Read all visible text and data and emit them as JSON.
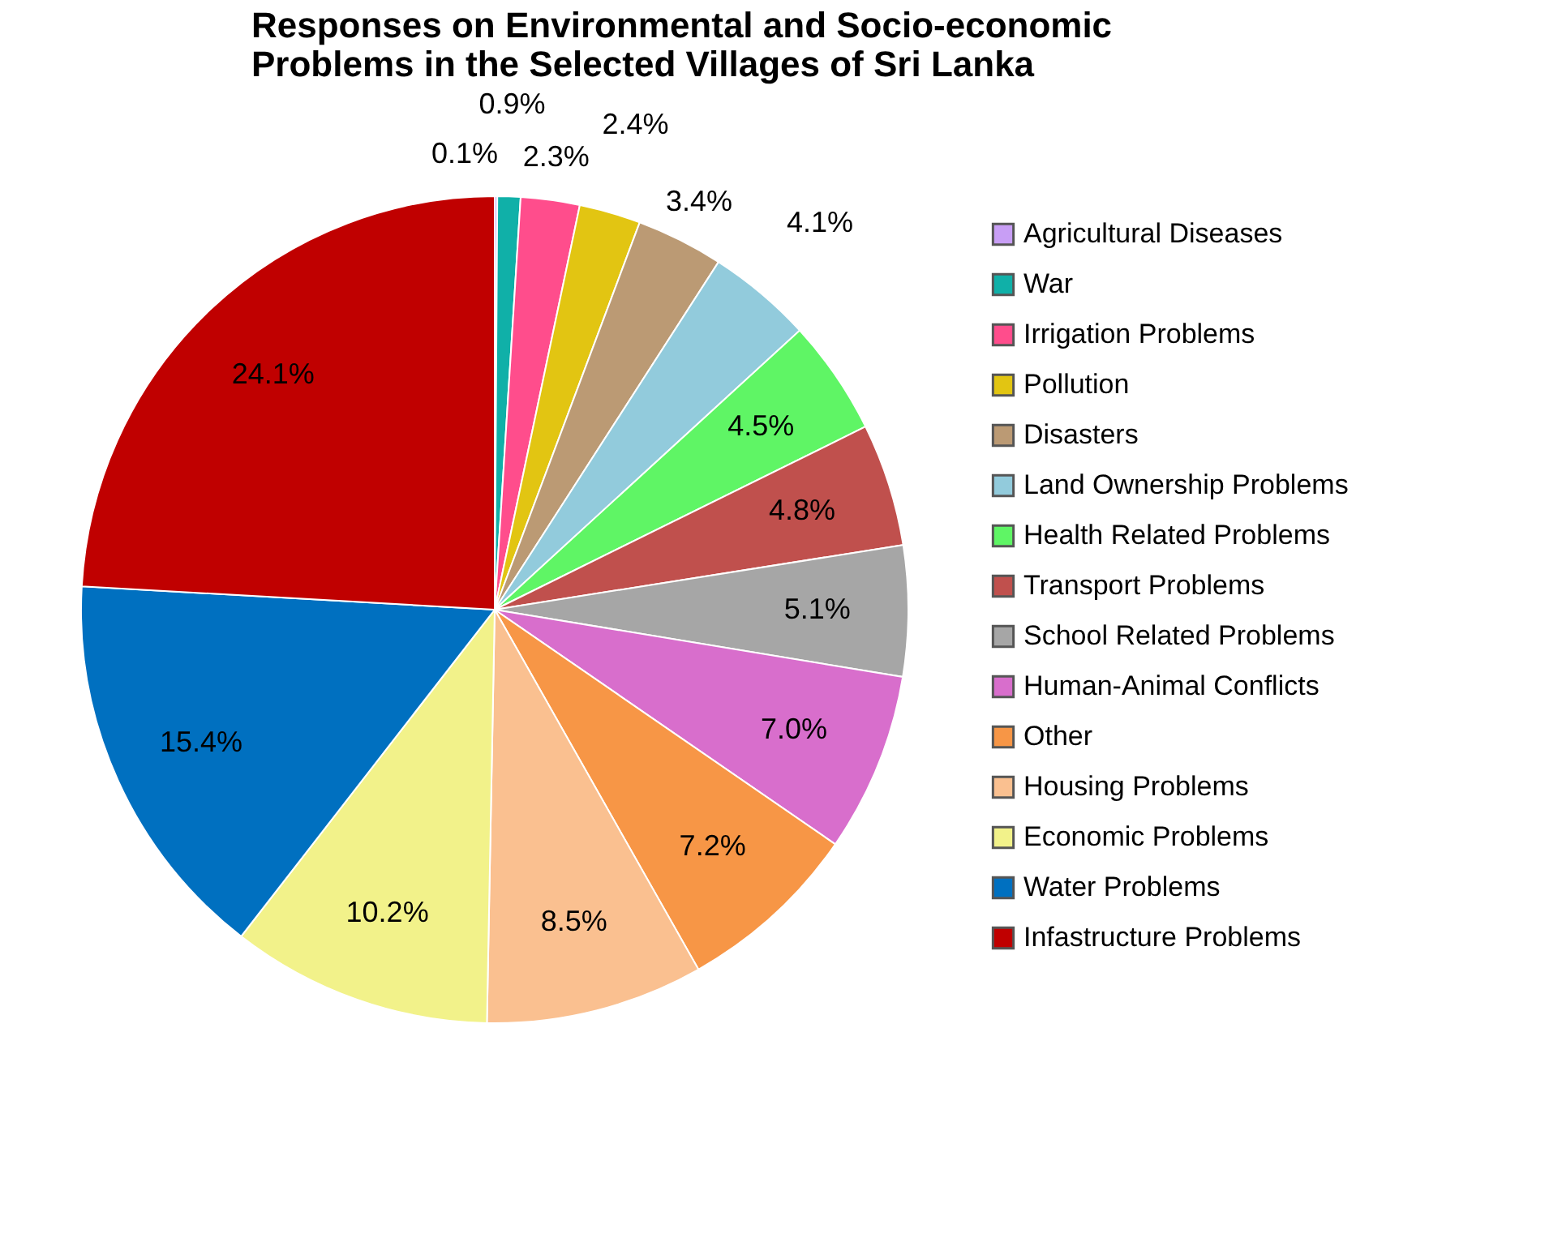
{
  "chart_data": {
    "type": "pie",
    "title": [
      "Responses on Environmental and Socio-economic",
      "Problems in the Selected Villages of Sri Lanka"
    ],
    "categories": [
      "Agricultural Diseases",
      "War",
      "Irrigation Problems",
      "Pollution",
      "Disasters",
      "Land Ownership Problems",
      "Health Related Problems",
      "Transport Problems",
      "School Related Problems",
      "Human-Animal Conflicts",
      "Other",
      "Housing Problems",
      "Economic Problems",
      "Water Problems",
      "Infastructure Problems"
    ],
    "values": [
      0.1,
      0.9,
      2.3,
      2.4,
      3.4,
      4.1,
      4.5,
      4.8,
      5.1,
      7.0,
      7.2,
      8.5,
      10.2,
      15.4,
      24.1
    ],
    "colors": [
      "#c89ef5",
      "#10b0a8",
      "#ff4d8c",
      "#e2c512",
      "#bb9a74",
      "#92cbdc",
      "#5ff565",
      "#c0504d",
      "#a6a6a6",
      "#d86ecc",
      "#f79646",
      "#fac090",
      "#f2f28a",
      "#0070c0",
      "#c00000"
    ],
    "value_labels": [
      "0.1%",
      "0.9%",
      "2.3%",
      "2.4%",
      "3.4%",
      "4.1%",
      "4.5%",
      "4.8%",
      "5.1%",
      "7.0%",
      "7.2%",
      "8.5%",
      "10.2%",
      "15.4%",
      "24.1%"
    ],
    "legend": "right"
  }
}
